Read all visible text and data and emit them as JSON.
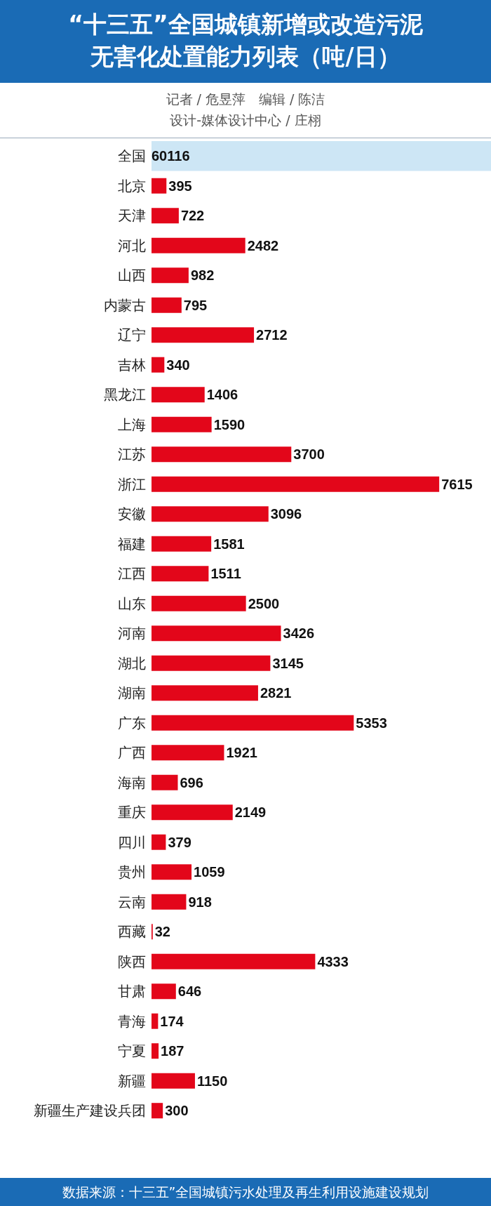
{
  "chart_data": {
    "type": "bar",
    "orientation": "horizontal",
    "title": "“十三五”全国城镇新增或改造污泥无害化处置能力列表（吨/日）",
    "subtitle": "记者 / 危昱萍　编辑 / 陈洁",
    "categories": [
      "全国",
      "北京",
      "天津",
      "河北",
      "山西",
      "内蒙古",
      "辽宁",
      "吉林",
      "黑龙江",
      "上海",
      "江苏",
      "浙江",
      "安徽",
      "福建",
      "江西",
      "山东",
      "河南",
      "湖北",
      "湖南",
      "广东",
      "广西",
      "海南",
      "重庆",
      "四川",
      "贵州",
      "云南",
      "西藏",
      "陕西",
      "甘肃",
      "青海",
      "宁夏",
      "新疆",
      "新疆生产建设兵团"
    ],
    "values": [
      null,
      395,
      722,
      2482,
      982,
      795,
      2712,
      340,
      1406,
      1590,
      3700,
      7615,
      3096,
      1581,
      1511,
      2500,
      3426,
      3145,
      2821,
      5353,
      1921,
      696,
      2149,
      379,
      1059,
      918,
      32,
      4333,
      646,
      174,
      187,
      1150,
      300
    ],
    "value_labels": [
      "60116",
      "395",
      "722",
      "2482",
      "982",
      "795",
      "2712",
      "340",
      "1406",
      "1590",
      "3700",
      "7615",
      "3096",
      "1581",
      "1511",
      "2500",
      "3426",
      "3145",
      "2821",
      "5353",
      "1921",
      "696",
      "2149",
      "379",
      "1059",
      "918",
      "32",
      "4333",
      "646",
      "174",
      "187",
      "1150",
      "300"
    ],
    "color": "#e3061a",
    "bands": [
      {
        "axis": "y",
        "from": "全国",
        "to": "全国",
        "color": "#cde6f5"
      }
    ],
    "annotations": [
      "设计-媒体设计中心 / 庄栩",
      "数据来源：十三五”全国城镇污水处理及再生利用设施建设规划"
    ]
  }
}
